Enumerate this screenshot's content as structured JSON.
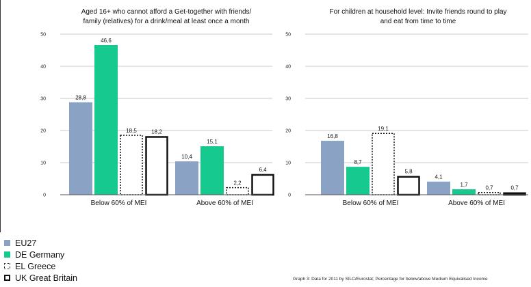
{
  "chart_data": [
    {
      "type": "bar",
      "title_lines": [
        "Aged 16+ who cannot afford a Get-together with friends/",
        "family (relatives) for a drink/meal at least once a month"
      ],
      "categories": [
        "Below 60% of MEI",
        "Above 60% of MEI"
      ],
      "ylim": [
        0,
        50
      ],
      "yticks": [
        "0",
        "10",
        "20",
        "30",
        "40",
        "50"
      ],
      "grid": true,
      "series": [
        {
          "name": "EU27",
          "values": [
            28.8,
            10.4
          ],
          "labels": [
            "28,8",
            "10,4"
          ]
        },
        {
          "name": "DE Germany",
          "values": [
            46.6,
            15.1
          ],
          "labels": [
            "46,6",
            "15,1"
          ]
        },
        {
          "name": "EL Greece",
          "values": [
            18.5,
            2.2
          ],
          "labels": [
            "18,5",
            "2,2"
          ]
        },
        {
          "name": "UK Great Britain",
          "values": [
            18.2,
            6.4
          ],
          "labels": [
            "18,2",
            "6,4"
          ]
        }
      ]
    },
    {
      "type": "bar",
      "title_lines": [
        "For children at household level: Invite friends round to play",
        "and eat from time to time"
      ],
      "categories": [
        "Below 60% of MEI",
        "Above 60% of MEI"
      ],
      "ylim": [
        0,
        50
      ],
      "yticks": [
        "0",
        "10",
        "20",
        "30",
        "40",
        "50"
      ],
      "grid": true,
      "series": [
        {
          "name": "EU27",
          "values": [
            16.8,
            4.1
          ],
          "labels": [
            "16,8",
            "4,1"
          ]
        },
        {
          "name": "DE Germany",
          "values": [
            8.7,
            1.7
          ],
          "labels": [
            "8,7",
            "1,7"
          ]
        },
        {
          "name": "EL Greece",
          "values": [
            19.1,
            0.7
          ],
          "labels": [
            "19,1",
            "0,7"
          ]
        },
        {
          "name": "UK Great Britain",
          "values": [
            5.8,
            0.7
          ],
          "labels": [
            "5,8",
            "0,7"
          ]
        }
      ]
    }
  ],
  "legend": {
    "placement": "bottom-left",
    "items": [
      {
        "label": "EU27",
        "style": "fill-blue"
      },
      {
        "label": "DE Germany",
        "style": "fill-green"
      },
      {
        "label": "EL Greece",
        "style": "dotted-outline"
      },
      {
        "label": "UK Great Britain",
        "style": "solid-outline"
      }
    ]
  },
  "caption": "Graph 3: Data for 2011 by SILC/Eurostat; Percentage for below/above Medium Equivalised Income",
  "colors": {
    "eu27": "#8aa3c4",
    "germany": "#16c98e",
    "gridline": "#c8c8c8",
    "axis": "#555555",
    "outline": "#111111"
  }
}
